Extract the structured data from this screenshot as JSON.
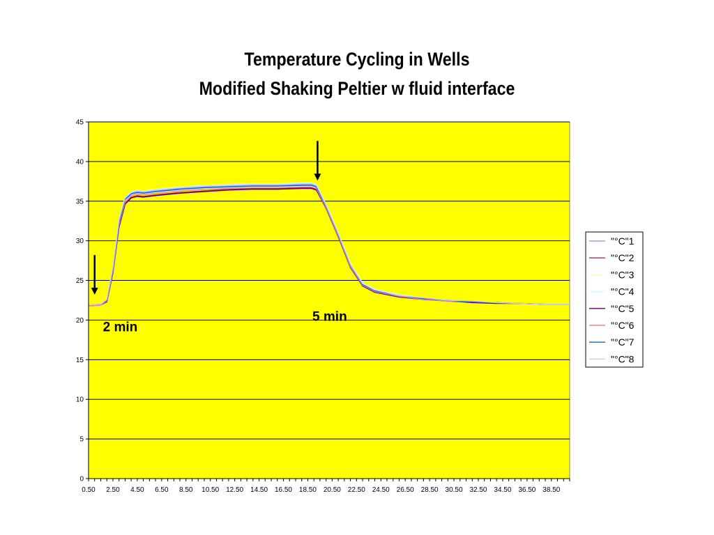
{
  "chart_data": {
    "type": "line",
    "title_line_1": "Temperature Cycling in Wells",
    "title_line_2": "Modified Shaking Peltier w fluid interface",
    "xlabel": "",
    "ylabel": "",
    "ylim": [
      0,
      45
    ],
    "y_ticks": [
      "0",
      "5",
      "10",
      "15",
      "20",
      "25",
      "30",
      "35",
      "40",
      "45"
    ],
    "x_ticks": [
      "0.50",
      "2.50",
      "4.50",
      "6.50",
      "8.50",
      "10.50",
      "12.50",
      "14.50",
      "16.50",
      "18.50",
      "20.50",
      "22.50",
      "24.50",
      "26.50",
      "28.50",
      "30.50",
      "32.50",
      "34.50",
      "36.50",
      "38.50"
    ],
    "xlim": [
      0.5,
      40.0
    ],
    "plot_background": "#ffff00",
    "grid": "horizontal",
    "legend_position": "right",
    "annotations": [
      {
        "text": "2 min",
        "x": 3.1,
        "y": 18.6
      },
      {
        "text": "5 min",
        "x": 20.3,
        "y": 19.9
      }
    ],
    "arrows": [
      {
        "x": 1.0,
        "y_from": 28.2,
        "y_to": 23.2
      },
      {
        "x": 19.3,
        "y_from": 42.6,
        "y_to": 37.6
      }
    ],
    "x": [
      0.5,
      1.5,
      2.0,
      2.5,
      3.0,
      3.5,
      4.0,
      4.5,
      5.0,
      6.0,
      8.0,
      10.0,
      12.0,
      14.0,
      16.0,
      18.0,
      18.8,
      19.2,
      20.0,
      21.0,
      22.0,
      23.0,
      24.0,
      26.0,
      28.0,
      30.0,
      32.0,
      34.0,
      36.0,
      38.0,
      40.0
    ],
    "series": [
      {
        "name": "\"°C\"1",
        "color": "#9999ff",
        "values": [
          21.9,
          22.0,
          22.5,
          26.5,
          32.5,
          35.3,
          36.0,
          36.2,
          36.1,
          36.3,
          36.6,
          36.8,
          36.9,
          37.0,
          37.0,
          37.1,
          37.1,
          36.9,
          34.5,
          30.9,
          27.0,
          24.6,
          23.8,
          23.1,
          22.7,
          22.5,
          22.3,
          22.2,
          22.1,
          22.0,
          22.0
        ]
      },
      {
        "name": "\"°C\"2",
        "color": "#993366",
        "values": [
          21.8,
          21.9,
          22.3,
          26.0,
          31.8,
          34.7,
          35.5,
          35.7,
          35.6,
          35.8,
          36.1,
          36.3,
          36.5,
          36.6,
          36.6,
          36.7,
          36.7,
          36.5,
          34.2,
          30.6,
          26.7,
          24.4,
          23.6,
          23.0,
          22.6,
          22.4,
          22.3,
          22.2,
          22.1,
          22.0,
          22.0
        ]
      },
      {
        "name": "\"°C\"3",
        "color": "#ffffcc",
        "values": [
          21.8,
          21.9,
          22.4,
          26.2,
          32.1,
          35.0,
          35.8,
          36.0,
          35.9,
          36.1,
          36.4,
          36.6,
          36.7,
          36.8,
          36.8,
          36.9,
          36.9,
          36.7,
          34.3,
          30.7,
          26.8,
          24.5,
          23.7,
          23.0,
          22.7,
          22.5,
          22.3,
          22.2,
          22.1,
          22.0,
          22.0
        ]
      },
      {
        "name": "\"°C\"4",
        "color": "#ccffff",
        "values": [
          21.9,
          22.0,
          22.6,
          26.7,
          32.7,
          35.5,
          36.2,
          36.4,
          36.3,
          36.5,
          36.8,
          37.0,
          37.1,
          37.2,
          37.2,
          37.3,
          37.3,
          37.1,
          34.6,
          31.0,
          27.1,
          24.7,
          23.9,
          23.2,
          22.8,
          22.5,
          22.4,
          22.2,
          22.1,
          22.0,
          22.0
        ]
      },
      {
        "name": "\"°C\"5",
        "color": "#660066",
        "values": [
          21.8,
          21.9,
          22.3,
          25.9,
          31.7,
          34.6,
          35.4,
          35.6,
          35.5,
          35.7,
          36.0,
          36.2,
          36.4,
          36.5,
          36.5,
          36.6,
          36.6,
          36.4,
          34.1,
          30.5,
          26.6,
          24.3,
          23.5,
          22.9,
          22.6,
          22.4,
          22.2,
          22.1,
          22.1,
          22.0,
          22.0
        ]
      },
      {
        "name": "\"°C\"6",
        "color": "#ff8080",
        "values": [
          21.8,
          21.9,
          22.4,
          26.1,
          32.0,
          34.9,
          35.7,
          35.9,
          35.8,
          36.0,
          36.3,
          36.5,
          36.6,
          36.7,
          36.7,
          36.8,
          36.8,
          36.6,
          34.2,
          30.6,
          26.7,
          24.4,
          23.6,
          23.0,
          22.6,
          22.4,
          22.3,
          22.2,
          22.1,
          22.0,
          22.0
        ]
      },
      {
        "name": "\"°C\"7",
        "color": "#0066cc",
        "values": [
          21.9,
          22.0,
          22.5,
          26.4,
          32.3,
          35.2,
          35.9,
          36.1,
          36.0,
          36.2,
          36.5,
          36.7,
          36.8,
          36.9,
          36.9,
          37.0,
          37.0,
          36.8,
          34.4,
          30.8,
          26.9,
          24.5,
          23.7,
          23.1,
          22.7,
          22.5,
          22.3,
          22.2,
          22.1,
          22.0,
          22.0
        ]
      },
      {
        "name": "\"°C\"8",
        "color": "#ccccff",
        "values": [
          21.9,
          22.0,
          22.6,
          26.6,
          32.6,
          35.4,
          36.1,
          36.3,
          36.2,
          36.4,
          36.7,
          36.9,
          37.0,
          37.1,
          37.1,
          37.2,
          37.2,
          37.0,
          34.5,
          30.9,
          27.0,
          24.6,
          23.8,
          23.1,
          22.8,
          22.5,
          22.4,
          22.2,
          22.1,
          22.0,
          22.0
        ]
      }
    ]
  }
}
